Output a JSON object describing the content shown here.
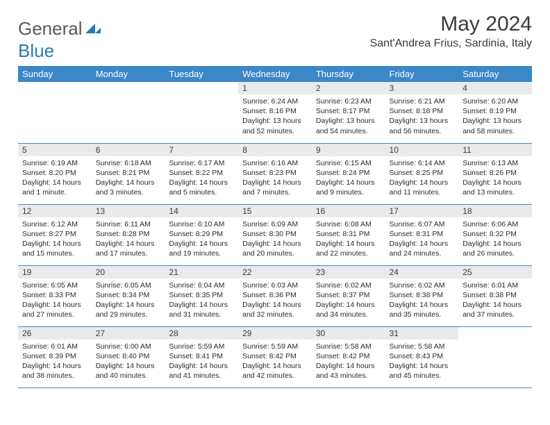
{
  "brand": {
    "part1": "General",
    "part2": "Blue"
  },
  "title": "May 2024",
  "location": "Sant'Andrea Frius, Sardinia, Italy",
  "colors": {
    "header_bg": "#3b87c8",
    "header_text": "#ffffff",
    "daynum_bg": "#e9eaec",
    "rule": "#3b87c8",
    "logo_gray": "#5a5a5a",
    "logo_blue": "#2a7ab9"
  },
  "calendar": {
    "type": "table",
    "columns": [
      "Sunday",
      "Monday",
      "Tuesday",
      "Wednesday",
      "Thursday",
      "Friday",
      "Saturday"
    ],
    "weeks": [
      [
        {
          "empty": true
        },
        {
          "empty": true
        },
        {
          "empty": true
        },
        {
          "n": "1",
          "sr": "6:24 AM",
          "ss": "8:16 PM",
          "dl": "13 hours and 52 minutes."
        },
        {
          "n": "2",
          "sr": "6:23 AM",
          "ss": "8:17 PM",
          "dl": "13 hours and 54 minutes."
        },
        {
          "n": "3",
          "sr": "6:21 AM",
          "ss": "8:18 PM",
          "dl": "13 hours and 56 minutes."
        },
        {
          "n": "4",
          "sr": "6:20 AM",
          "ss": "8:19 PM",
          "dl": "13 hours and 58 minutes."
        }
      ],
      [
        {
          "n": "5",
          "sr": "6:19 AM",
          "ss": "8:20 PM",
          "dl": "14 hours and 1 minute."
        },
        {
          "n": "6",
          "sr": "6:18 AM",
          "ss": "8:21 PM",
          "dl": "14 hours and 3 minutes."
        },
        {
          "n": "7",
          "sr": "6:17 AM",
          "ss": "8:22 PM",
          "dl": "14 hours and 5 minutes."
        },
        {
          "n": "8",
          "sr": "6:16 AM",
          "ss": "8:23 PM",
          "dl": "14 hours and 7 minutes."
        },
        {
          "n": "9",
          "sr": "6:15 AM",
          "ss": "8:24 PM",
          "dl": "14 hours and 9 minutes."
        },
        {
          "n": "10",
          "sr": "6:14 AM",
          "ss": "8:25 PM",
          "dl": "14 hours and 11 minutes."
        },
        {
          "n": "11",
          "sr": "6:13 AM",
          "ss": "8:26 PM",
          "dl": "14 hours and 13 minutes."
        }
      ],
      [
        {
          "n": "12",
          "sr": "6:12 AM",
          "ss": "8:27 PM",
          "dl": "14 hours and 15 minutes."
        },
        {
          "n": "13",
          "sr": "6:11 AM",
          "ss": "8:28 PM",
          "dl": "14 hours and 17 minutes."
        },
        {
          "n": "14",
          "sr": "6:10 AM",
          "ss": "8:29 PM",
          "dl": "14 hours and 19 minutes."
        },
        {
          "n": "15",
          "sr": "6:09 AM",
          "ss": "8:30 PM",
          "dl": "14 hours and 20 minutes."
        },
        {
          "n": "16",
          "sr": "6:08 AM",
          "ss": "8:31 PM",
          "dl": "14 hours and 22 minutes."
        },
        {
          "n": "17",
          "sr": "6:07 AM",
          "ss": "8:31 PM",
          "dl": "14 hours and 24 minutes."
        },
        {
          "n": "18",
          "sr": "6:06 AM",
          "ss": "8:32 PM",
          "dl": "14 hours and 26 minutes."
        }
      ],
      [
        {
          "n": "19",
          "sr": "6:05 AM",
          "ss": "8:33 PM",
          "dl": "14 hours and 27 minutes."
        },
        {
          "n": "20",
          "sr": "6:05 AM",
          "ss": "8:34 PM",
          "dl": "14 hours and 29 minutes."
        },
        {
          "n": "21",
          "sr": "6:04 AM",
          "ss": "8:35 PM",
          "dl": "14 hours and 31 minutes."
        },
        {
          "n": "22",
          "sr": "6:03 AM",
          "ss": "8:36 PM",
          "dl": "14 hours and 32 minutes."
        },
        {
          "n": "23",
          "sr": "6:02 AM",
          "ss": "8:37 PM",
          "dl": "14 hours and 34 minutes."
        },
        {
          "n": "24",
          "sr": "6:02 AM",
          "ss": "8:38 PM",
          "dl": "14 hours and 35 minutes."
        },
        {
          "n": "25",
          "sr": "6:01 AM",
          "ss": "8:38 PM",
          "dl": "14 hours and 37 minutes."
        }
      ],
      [
        {
          "n": "26",
          "sr": "6:01 AM",
          "ss": "8:39 PM",
          "dl": "14 hours and 38 minutes."
        },
        {
          "n": "27",
          "sr": "6:00 AM",
          "ss": "8:40 PM",
          "dl": "14 hours and 40 minutes."
        },
        {
          "n": "28",
          "sr": "5:59 AM",
          "ss": "8:41 PM",
          "dl": "14 hours and 41 minutes."
        },
        {
          "n": "29",
          "sr": "5:59 AM",
          "ss": "8:42 PM",
          "dl": "14 hours and 42 minutes."
        },
        {
          "n": "30",
          "sr": "5:58 AM",
          "ss": "8:42 PM",
          "dl": "14 hours and 43 minutes."
        },
        {
          "n": "31",
          "sr": "5:58 AM",
          "ss": "8:43 PM",
          "dl": "14 hours and 45 minutes."
        },
        {
          "empty": true
        }
      ]
    ],
    "labels": {
      "sunrise": "Sunrise:",
      "sunset": "Sunset:",
      "daylight": "Daylight:"
    }
  }
}
